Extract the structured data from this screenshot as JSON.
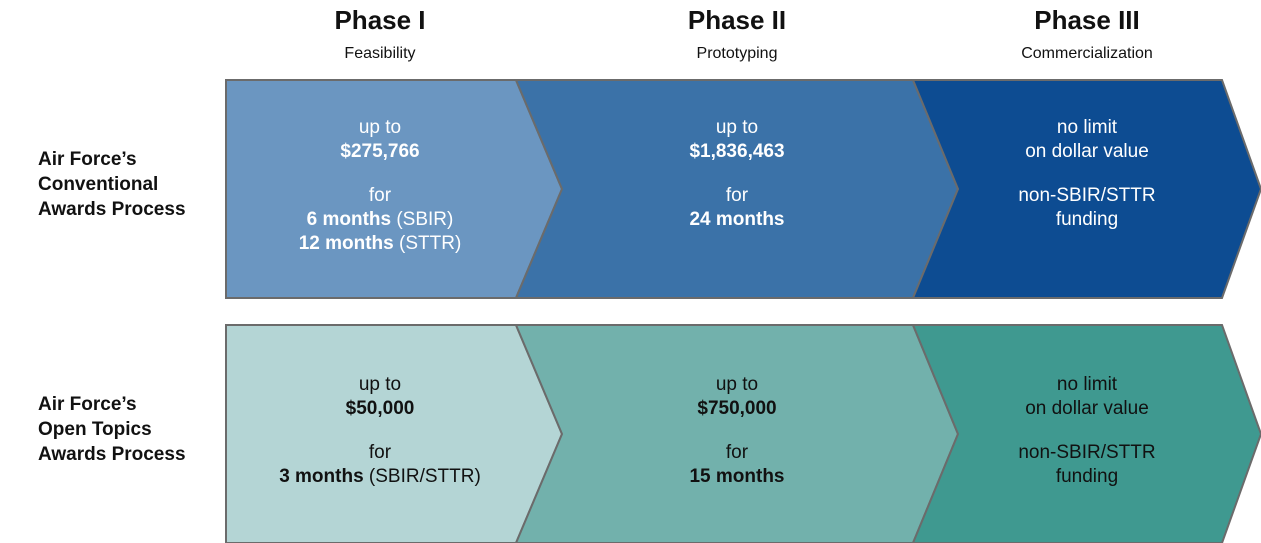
{
  "phases": [
    {
      "title": "Phase I",
      "subtitle": "Feasibility"
    },
    {
      "title": "Phase II",
      "subtitle": "Prototyping"
    },
    {
      "title": "Phase III",
      "subtitle": "Commercialization"
    }
  ],
  "rows": [
    {
      "label": [
        "Air Force’s",
        "Conventional",
        "Awards Process"
      ],
      "cells": [
        {
          "color": "#6b96c1",
          "text_color": "#ffffff",
          "groups": [
            [
              [
                {
                  "text": "up to",
                  "bold": false
                }
              ],
              [
                {
                  "text": "$275,766",
                  "bold": true
                }
              ]
            ],
            [
              [
                {
                  "text": "for",
                  "bold": false
                }
              ],
              [
                {
                  "text": "6 months",
                  "bold": true
                },
                {
                  "text": " (SBIR)",
                  "bold": false
                }
              ],
              [
                {
                  "text": "12 months",
                  "bold": true
                },
                {
                  "text": " (STTR)",
                  "bold": false
                }
              ]
            ]
          ]
        },
        {
          "color": "#3b72a8",
          "text_color": "#ffffff",
          "groups": [
            [
              [
                {
                  "text": "up to",
                  "bold": false
                }
              ],
              [
                {
                  "text": "$1,836,463",
                  "bold": true
                }
              ]
            ],
            [
              [
                {
                  "text": "for",
                  "bold": false
                }
              ],
              [
                {
                  "text": "24 months",
                  "bold": true
                }
              ]
            ]
          ]
        },
        {
          "color": "#0d4c92",
          "text_color": "#ffffff",
          "groups": [
            [
              [
                {
                  "text": "no limit",
                  "bold": false
                }
              ],
              [
                {
                  "text": "on dollar value",
                  "bold": false
                }
              ]
            ],
            [
              [
                {
                  "text": "non-SBIR/STTR",
                  "bold": false
                }
              ],
              [
                {
                  "text": "funding",
                  "bold": false
                }
              ]
            ]
          ]
        }
      ]
    },
    {
      "label": [
        "Air Force’s",
        "Open Topics",
        "Awards Process"
      ],
      "cells": [
        {
          "color": "#b4d5d5",
          "text_color": "#111111",
          "groups": [
            [
              [
                {
                  "text": "up to",
                  "bold": false
                }
              ],
              [
                {
                  "text": "$50,000",
                  "bold": true
                }
              ]
            ],
            [
              [
                {
                  "text": "for",
                  "bold": false
                }
              ],
              [
                {
                  "text": "3 months",
                  "bold": true
                },
                {
                  "text": " (SBIR/STTR)",
                  "bold": false
                }
              ]
            ]
          ]
        },
        {
          "color": "#72b1ac",
          "text_color": "#111111",
          "groups": [
            [
              [
                {
                  "text": "up to",
                  "bold": false
                }
              ],
              [
                {
                  "text": "$750,000",
                  "bold": true
                }
              ]
            ],
            [
              [
                {
                  "text": "for",
                  "bold": false
                }
              ],
              [
                {
                  "text": "15 months",
                  "bold": true
                }
              ]
            ]
          ]
        },
        {
          "color": "#3f9990",
          "text_color": "#111111",
          "groups": [
            [
              [
                {
                  "text": "no limit",
                  "bold": false
                }
              ],
              [
                {
                  "text": "on dollar value",
                  "bold": false
                }
              ]
            ],
            [
              [
                {
                  "text": "non-SBIR/STTR",
                  "bold": false
                }
              ],
              [
                {
                  "text": "funding",
                  "bold": false
                }
              ]
            ]
          ]
        }
      ]
    }
  ]
}
